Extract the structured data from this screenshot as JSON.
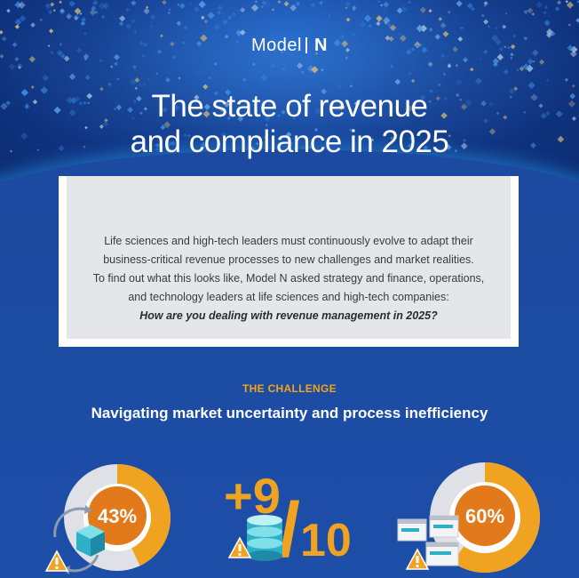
{
  "logo": {
    "model": "Model",
    "n": "N"
  },
  "title": {
    "line1": "The state of revenue",
    "line2": "and compliance in 2025"
  },
  "intro": {
    "line1": "Life sciences and high-tech leaders must continuously evolve to adapt their",
    "line2": "business-critical revenue processes to new challenges and market realities.",
    "line3": "To find out what this looks like, Model N asked strategy and finance, operations,",
    "line4": "and technology leaders at life sciences and high-tech companies:",
    "question": "How are you dealing with revenue management in 2025?"
  },
  "challenge": {
    "label": "THE CHALLENGE",
    "title": "Navigating market uncertainty and process inefficiency"
  },
  "stats": [
    {
      "value": "43%",
      "fraction": 0.43,
      "icon": "cube-cycle-warning-icon"
    },
    {
      "plus": "+9",
      "slash": "/",
      "ten": "10",
      "icon": "database-warning-icon"
    },
    {
      "value": "60%",
      "fraction": 0.6,
      "icon": "windows-warning-icon"
    }
  ],
  "colors": {
    "orange": "#f0a321",
    "orange_dark": "#e27a17",
    "navy": "#1c4aa0",
    "teal": "#2fb0c9"
  }
}
